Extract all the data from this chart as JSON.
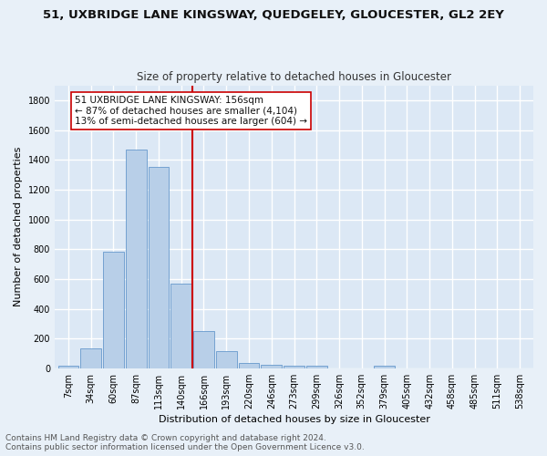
{
  "title": "51, UXBRIDGE LANE KINGSWAY, QUEDGELEY, GLOUCESTER, GL2 2EY",
  "subtitle": "Size of property relative to detached houses in Gloucester",
  "xlabel": "Distribution of detached houses by size in Gloucester",
  "ylabel": "Number of detached properties",
  "categories": [
    "7sqm",
    "34sqm",
    "60sqm",
    "87sqm",
    "113sqm",
    "140sqm",
    "166sqm",
    "193sqm",
    "220sqm",
    "246sqm",
    "273sqm",
    "299sqm",
    "326sqm",
    "352sqm",
    "379sqm",
    "405sqm",
    "432sqm",
    "458sqm",
    "485sqm",
    "511sqm",
    "538sqm"
  ],
  "bar_values": [
    20,
    135,
    780,
    1470,
    1355,
    570,
    248,
    115,
    35,
    25,
    18,
    18,
    0,
    0,
    20,
    0,
    0,
    0,
    0,
    0,
    0
  ],
  "bar_color": "#b8cfe8",
  "bar_edge_color": "#6699cc",
  "vline_x": 5.5,
  "vline_color": "#cc0000",
  "annotation_text": "51 UXBRIDGE LANE KINGSWAY: 156sqm\n← 87% of detached houses are smaller (4,104)\n13% of semi-detached houses are larger (604) →",
  "annotation_box_color": "#ffffff",
  "annotation_box_edge": "#cc0000",
  "ylim": [
    0,
    1900
  ],
  "yticks": [
    0,
    200,
    400,
    600,
    800,
    1000,
    1200,
    1400,
    1600,
    1800
  ],
  "footer_line1": "Contains HM Land Registry data © Crown copyright and database right 2024.",
  "footer_line2": "Contains public sector information licensed under the Open Government Licence v3.0.",
  "bg_color": "#dce8f5",
  "fig_bg_color": "#e8f0f8",
  "grid_color": "#ffffff",
  "title_fontsize": 9.5,
  "subtitle_fontsize": 8.5,
  "xlabel_fontsize": 8,
  "ylabel_fontsize": 8,
  "annotation_fontsize": 7.5,
  "tick_fontsize": 7,
  "footer_fontsize": 6.5
}
